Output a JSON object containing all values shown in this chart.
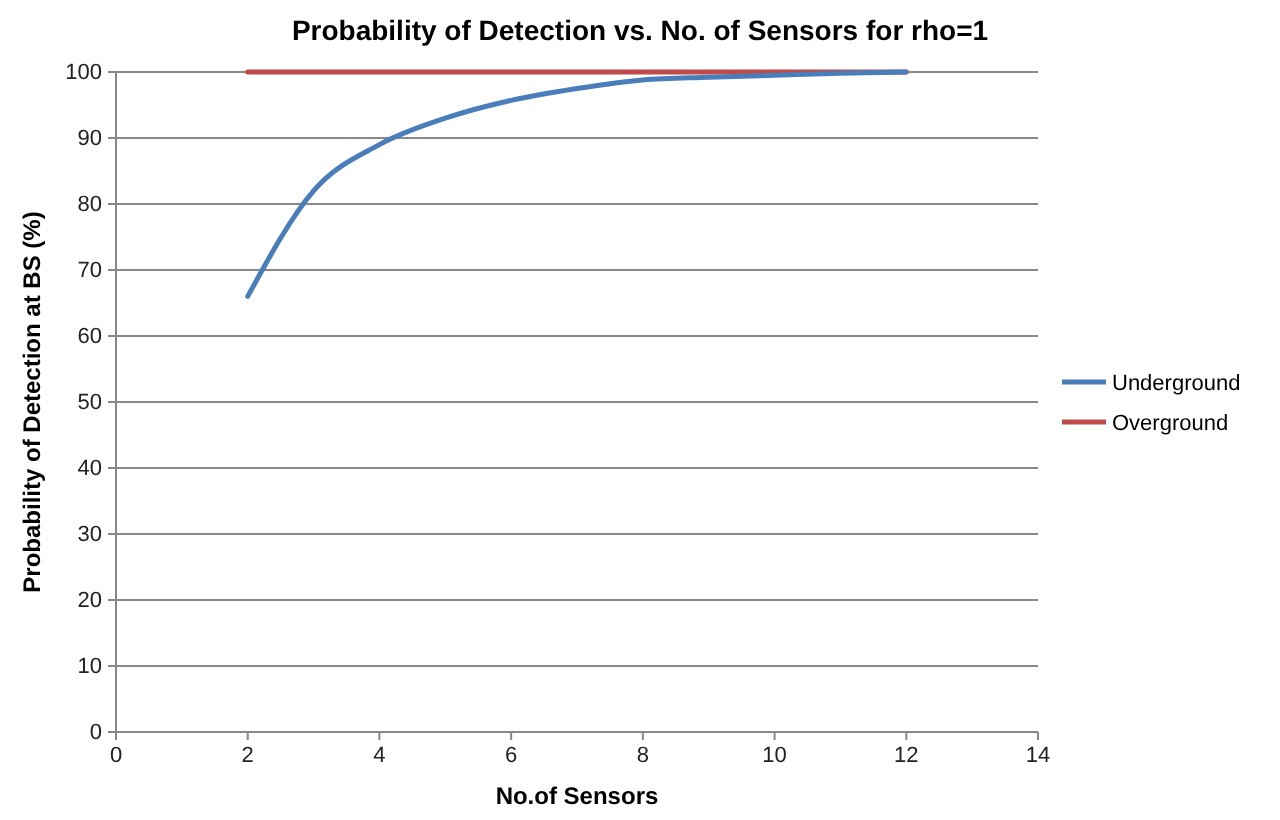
{
  "chart_data": {
    "type": "line",
    "title": "Probability of Detection vs. No. of Sensors for rho=1",
    "xlabel": "No.of Sensors",
    "ylabel": "Probability of Detection at BS (%)",
    "x": [
      2,
      3,
      4,
      5,
      6,
      7,
      8,
      9,
      10,
      11,
      12
    ],
    "series": [
      {
        "name": "Underground",
        "color": "#4a7ebb",
        "values": [
          66,
          82,
          89,
          93,
          95.7,
          97.5,
          98.8,
          99.2,
          99.5,
          99.8,
          100
        ]
      },
      {
        "name": "Overground",
        "color": "#be4b48",
        "values": [
          100,
          100,
          100,
          100,
          100,
          100,
          100,
          100,
          100,
          100,
          100
        ]
      }
    ],
    "xlim": [
      0,
      14
    ],
    "xticks": [
      0,
      2,
      4,
      6,
      8,
      10,
      12,
      14
    ],
    "ylim": [
      0,
      100
    ],
    "yticks": [
      0,
      10,
      20,
      30,
      40,
      50,
      60,
      70,
      80,
      90,
      100
    ],
    "grid": "y",
    "legend": "right",
    "marker": "none",
    "line_style": "solid"
  }
}
